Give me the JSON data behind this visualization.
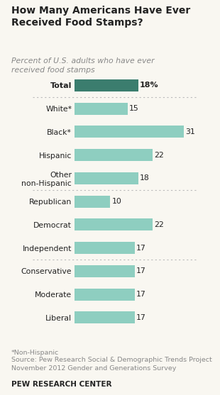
{
  "title": "How Many Americans Have Ever\nReceived Food Stamps?",
  "subtitle": "Percent of U.S. adults who have ever\nreceived food stamps",
  "footer_line1": "*Non-Hispanic",
  "footer_line2": "Source: Pew Research Social & Demographic Trends Project\nNovember 2012 Gender and Generations Survey",
  "branding": "PEW RESEARCH CENTER",
  "categories": [
    "Liberal",
    "Moderate",
    "Conservative",
    "Independent",
    "Democrat",
    "Republican",
    "Other\nnon-Hispanic",
    "Hispanic",
    "Black*",
    "White*",
    "Total"
  ],
  "values": [
    17,
    17,
    17,
    17,
    22,
    10,
    18,
    22,
    31,
    15,
    18
  ],
  "bar_colors": [
    "#8ecec0",
    "#8ecec0",
    "#8ecec0",
    "#8ecec0",
    "#8ecec0",
    "#8ecec0",
    "#8ecec0",
    "#8ecec0",
    "#8ecec0",
    "#8ecec0",
    "#3b7d6e"
  ],
  "is_total": [
    false,
    false,
    false,
    false,
    false,
    false,
    false,
    false,
    false,
    false,
    true
  ],
  "xlim": [
    0,
    35
  ],
  "bg_color": "#f9f7f1",
  "text_color": "#222222",
  "gray_text": "#888888"
}
